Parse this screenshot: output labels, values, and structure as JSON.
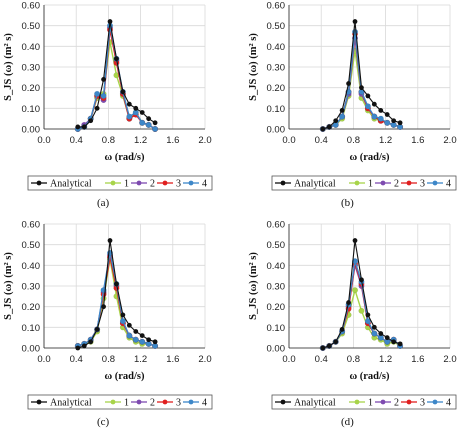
{
  "panels": [
    {
      "label": "(a)"
    },
    {
      "label": "(b)"
    },
    {
      "label": "(c)"
    },
    {
      "label": "(d)"
    }
  ],
  "colors": {
    "Analytical": "#111111",
    "1": "#a8d44a",
    "2": "#7e4bb0",
    "3": "#e02020",
    "4": "#3d87c8",
    "grid": "#d9d9d9",
    "axis": "#222222"
  },
  "chart_data": [
    {
      "type": "line",
      "xlabel": "ω (rad/s)",
      "ylabel": "S_JS (ω) (m² s)",
      "xlim": [
        0.0,
        2.0
      ],
      "ylim": [
        0.0,
        0.6
      ],
      "xticks": [
        "0.0",
        "0.4",
        "0.8",
        "1.2",
        "1.6",
        "2.0"
      ],
      "yticks": [
        "0.00",
        "0.10",
        "0.20",
        "0.30",
        "0.40",
        "0.50",
        "0.60"
      ],
      "grid": true,
      "legend": "bottom",
      "series": [
        {
          "name": "Analytical",
          "x": [
            0.42,
            0.5,
            0.58,
            0.66,
            0.74,
            0.82,
            0.9,
            0.98,
            1.06,
            1.14,
            1.22,
            1.3,
            1.38
          ],
          "y": [
            0.01,
            0.01,
            0.04,
            0.1,
            0.24,
            0.52,
            0.34,
            0.18,
            0.12,
            0.1,
            0.08,
            0.05,
            0.03
          ]
        },
        {
          "name": "1",
          "x": [
            0.42,
            0.5,
            0.58,
            0.66,
            0.74,
            0.82,
            0.9,
            0.98,
            1.06,
            1.14,
            1.22,
            1.3,
            1.38
          ],
          "y": [
            0.0,
            0.01,
            0.05,
            0.15,
            0.17,
            0.42,
            0.26,
            0.16,
            0.05,
            0.08,
            0.03,
            0.02,
            0.0
          ]
        },
        {
          "name": "2",
          "x": [
            0.42,
            0.5,
            0.58,
            0.66,
            0.74,
            0.82,
            0.9,
            0.98,
            1.06,
            1.14,
            1.22,
            1.3,
            1.38
          ],
          "y": [
            0.0,
            0.02,
            0.05,
            0.16,
            0.14,
            0.49,
            0.33,
            0.17,
            0.05,
            0.07,
            0.03,
            0.02,
            0.0
          ]
        },
        {
          "name": "3",
          "x": [
            0.42,
            0.5,
            0.58,
            0.66,
            0.74,
            0.82,
            0.9,
            0.98,
            1.06,
            1.14,
            1.22,
            1.3,
            1.38
          ],
          "y": [
            0.0,
            0.01,
            0.05,
            0.16,
            0.15,
            0.48,
            0.32,
            0.17,
            0.05,
            0.07,
            0.03,
            0.02,
            0.0
          ]
        },
        {
          "name": "4",
          "x": [
            0.42,
            0.5,
            0.58,
            0.66,
            0.74,
            0.82,
            0.9,
            0.98,
            1.06,
            1.14,
            1.22,
            1.3,
            1.38
          ],
          "y": [
            0.0,
            0.01,
            0.05,
            0.17,
            0.16,
            0.5,
            0.34,
            0.18,
            0.06,
            0.08,
            0.03,
            0.02,
            0.0
          ]
        }
      ]
    },
    {
      "type": "line",
      "xlabel": "ω (rad/s)",
      "ylabel": "S_JS (ω) (m² s)",
      "xlim": [
        0.0,
        2.0
      ],
      "ylim": [
        0.0,
        0.6
      ],
      "xticks": [
        "0.0",
        "0.4",
        "0.8",
        "1.2",
        "1.6",
        "2.0"
      ],
      "yticks": [
        "0.00",
        "0.10",
        "0.20",
        "0.30",
        "0.40",
        "0.50",
        "0.60"
      ],
      "grid": true,
      "legend": "bottom",
      "series": [
        {
          "name": "Analytical",
          "x": [
            0.42,
            0.5,
            0.58,
            0.66,
            0.74,
            0.82,
            0.9,
            0.98,
            1.06,
            1.14,
            1.22,
            1.3,
            1.38
          ],
          "y": [
            0.0,
            0.01,
            0.04,
            0.09,
            0.22,
            0.52,
            0.2,
            0.16,
            0.12,
            0.09,
            0.07,
            0.04,
            0.03
          ]
        },
        {
          "name": "1",
          "x": [
            0.42,
            0.5,
            0.58,
            0.66,
            0.74,
            0.82,
            0.9,
            0.98,
            1.06,
            1.14,
            1.22,
            1.3,
            1.38
          ],
          "y": [
            0.0,
            0.01,
            0.02,
            0.05,
            0.16,
            0.38,
            0.15,
            0.09,
            0.05,
            0.04,
            0.03,
            0.02,
            0.01
          ]
        },
        {
          "name": "2",
          "x": [
            0.42,
            0.5,
            0.58,
            0.66,
            0.74,
            0.82,
            0.9,
            0.98,
            1.06,
            1.14,
            1.22,
            1.3,
            1.38
          ],
          "y": [
            0.0,
            0.01,
            0.02,
            0.06,
            0.17,
            0.44,
            0.17,
            0.1,
            0.06,
            0.04,
            0.03,
            0.02,
            0.01
          ]
        },
        {
          "name": "3",
          "x": [
            0.42,
            0.5,
            0.58,
            0.66,
            0.74,
            0.82,
            0.9,
            0.98,
            1.06,
            1.14,
            1.22,
            1.3,
            1.38
          ],
          "y": [
            0.0,
            0.01,
            0.02,
            0.06,
            0.18,
            0.46,
            0.18,
            0.1,
            0.06,
            0.04,
            0.03,
            0.02,
            0.01
          ]
        },
        {
          "name": "4",
          "x": [
            0.42,
            0.5,
            0.58,
            0.66,
            0.74,
            0.82,
            0.9,
            0.98,
            1.06,
            1.14,
            1.22,
            1.3,
            1.38
          ],
          "y": [
            0.0,
            0.01,
            0.02,
            0.06,
            0.18,
            0.47,
            0.18,
            0.11,
            0.06,
            0.05,
            0.03,
            0.02,
            0.01
          ]
        }
      ]
    },
    {
      "type": "line",
      "xlabel": "ω (rad/s)",
      "ylabel": "S_JS (ω) (m² s)",
      "xlim": [
        0.0,
        2.0
      ],
      "ylim": [
        0.0,
        0.6
      ],
      "xticks": [
        "0.0",
        "0.4",
        "0.8",
        "1.2",
        "1.6",
        "2.0"
      ],
      "yticks": [
        "0.00",
        "0.10",
        "0.20",
        "0.30",
        "0.40",
        "0.50",
        "0.60"
      ],
      "grid": true,
      "legend": "bottom",
      "series": [
        {
          "name": "Analytical",
          "x": [
            0.42,
            0.5,
            0.58,
            0.66,
            0.74,
            0.82,
            0.9,
            0.98,
            1.06,
            1.14,
            1.22,
            1.3,
            1.38
          ],
          "y": [
            0.0,
            0.01,
            0.03,
            0.09,
            0.2,
            0.52,
            0.31,
            0.16,
            0.11,
            0.08,
            0.06,
            0.04,
            0.03
          ]
        },
        {
          "name": "1",
          "x": [
            0.42,
            0.5,
            0.58,
            0.66,
            0.74,
            0.82,
            0.9,
            0.98,
            1.06,
            1.14,
            1.22,
            1.3,
            1.38
          ],
          "y": [
            0.01,
            0.02,
            0.03,
            0.08,
            0.24,
            0.43,
            0.25,
            0.1,
            0.05,
            0.03,
            0.02,
            0.02,
            0.01
          ]
        },
        {
          "name": "2",
          "x": [
            0.42,
            0.5,
            0.58,
            0.66,
            0.74,
            0.82,
            0.9,
            0.98,
            1.06,
            1.14,
            1.22,
            1.3,
            1.38
          ],
          "y": [
            0.01,
            0.02,
            0.04,
            0.09,
            0.27,
            0.45,
            0.3,
            0.12,
            0.06,
            0.04,
            0.03,
            0.02,
            0.01
          ]
        },
        {
          "name": "3",
          "x": [
            0.42,
            0.5,
            0.58,
            0.66,
            0.74,
            0.82,
            0.9,
            0.98,
            1.06,
            1.14,
            1.22,
            1.3,
            1.38
          ],
          "y": [
            0.01,
            0.02,
            0.04,
            0.09,
            0.26,
            0.44,
            0.29,
            0.12,
            0.06,
            0.04,
            0.03,
            0.02,
            0.01
          ]
        },
        {
          "name": "4",
          "x": [
            0.42,
            0.5,
            0.58,
            0.66,
            0.74,
            0.82,
            0.9,
            0.98,
            1.06,
            1.14,
            1.22,
            1.3,
            1.38
          ],
          "y": [
            0.01,
            0.02,
            0.04,
            0.09,
            0.28,
            0.46,
            0.31,
            0.13,
            0.06,
            0.04,
            0.03,
            0.02,
            0.01
          ]
        }
      ]
    },
    {
      "type": "line",
      "xlabel": "ω (rad/s)",
      "ylabel": "S_JS (ω) (m² s)",
      "xlim": [
        0.0,
        2.0
      ],
      "ylim": [
        0.0,
        0.6
      ],
      "xticks": [
        "0.0",
        "0.4",
        "0.8",
        "1.2",
        "1.6",
        "2.0"
      ],
      "yticks": [
        "0.00",
        "0.10",
        "0.20",
        "0.30",
        "0.40",
        "0.50",
        "0.60"
      ],
      "grid": true,
      "legend": "bottom",
      "series": [
        {
          "name": "Analytical",
          "x": [
            0.42,
            0.5,
            0.58,
            0.66,
            0.74,
            0.82,
            0.9,
            0.98,
            1.06,
            1.14,
            1.22,
            1.3,
            1.38
          ],
          "y": [
            0.0,
            0.01,
            0.03,
            0.09,
            0.22,
            0.52,
            0.33,
            0.16,
            0.1,
            0.07,
            0.05,
            0.03,
            0.02
          ]
        },
        {
          "name": "1",
          "x": [
            0.42,
            0.5,
            0.58,
            0.66,
            0.74,
            0.82,
            0.9,
            0.98,
            1.06,
            1.14,
            1.22,
            1.3,
            1.38
          ],
          "y": [
            0.0,
            0.01,
            0.03,
            0.07,
            0.16,
            0.28,
            0.18,
            0.1,
            0.05,
            0.04,
            0.02,
            0.03,
            0.01
          ]
        },
        {
          "name": "2",
          "x": [
            0.42,
            0.5,
            0.58,
            0.66,
            0.74,
            0.82,
            0.9,
            0.98,
            1.06,
            1.14,
            1.22,
            1.3,
            1.38
          ],
          "y": [
            0.0,
            0.01,
            0.03,
            0.08,
            0.2,
            0.4,
            0.3,
            0.12,
            0.07,
            0.05,
            0.03,
            0.04,
            0.01
          ]
        },
        {
          "name": "3",
          "x": [
            0.42,
            0.5,
            0.58,
            0.66,
            0.74,
            0.82,
            0.9,
            0.98,
            1.06,
            1.14,
            1.22,
            1.3,
            1.38
          ],
          "y": [
            0.0,
            0.01,
            0.03,
            0.08,
            0.19,
            0.41,
            0.31,
            0.12,
            0.07,
            0.05,
            0.03,
            0.04,
            0.01
          ]
        },
        {
          "name": "4",
          "x": [
            0.42,
            0.5,
            0.58,
            0.66,
            0.74,
            0.82,
            0.9,
            0.98,
            1.06,
            1.14,
            1.22,
            1.3,
            1.38
          ],
          "y": [
            0.0,
            0.01,
            0.03,
            0.08,
            0.21,
            0.42,
            0.32,
            0.13,
            0.07,
            0.05,
            0.03,
            0.04,
            0.01
          ]
        }
      ]
    }
  ]
}
